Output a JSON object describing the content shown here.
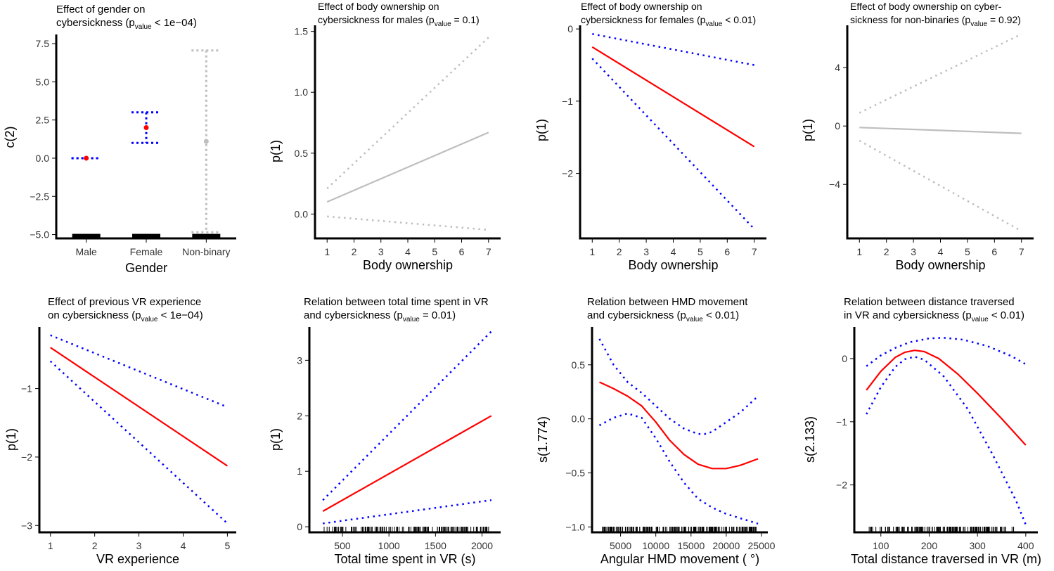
{
  "colors": {
    "significant_fit": "#ff0000",
    "significant_ci": "#0000ff",
    "nonsignificant": "#bebebe",
    "axis": "#000000",
    "point": "#ff0000"
  },
  "chart_data": [
    {
      "id": "p1",
      "type": "scatter",
      "title_lines": [
        [
          {
            "t": "Effect of gender on"
          }
        ],
        [
          {
            "t": "cybersickness (p"
          },
          {
            "t": "value",
            "sub": true
          },
          {
            "t": " < 1e−04)"
          }
        ]
      ],
      "xlabel": "Gender",
      "ylabel": "c(2)",
      "categories": [
        "Male",
        "Female",
        "Non-binary"
      ],
      "ylim": [
        -5.25,
        8.1
      ],
      "yticks": [
        -5.0,
        -2.5,
        0.0,
        2.5,
        5.0,
        7.5
      ],
      "ytick_labels": [
        "−5.0",
        "−2.5",
        "0.0",
        "2.5",
        "5.0",
        "7.5"
      ],
      "estimates": [
        {
          "category": "Male",
          "value": 0.0,
          "lower": 0.0,
          "upper": 0.0,
          "significant": true
        },
        {
          "category": "Female",
          "value": 2.0,
          "lower": 1.0,
          "upper": 3.0,
          "significant": true
        },
        {
          "category": "Non-binary",
          "value": 1.1,
          "lower": -4.85,
          "upper": 7.05,
          "significant": false
        }
      ],
      "rug": "category-bars"
    },
    {
      "id": "p2",
      "type": "line",
      "title_lines": [
        [
          {
            "t": "Effect of body ownership on"
          }
        ],
        [
          {
            "t": "cybersickness for males (p"
          },
          {
            "t": "value",
            "sub": true
          },
          {
            "t": " = 0.1)"
          }
        ]
      ],
      "xlabel": "Body ownership",
      "ylabel": "p(1)",
      "xlim": [
        0.55,
        7.45
      ],
      "ylim": [
        -0.2,
        1.55
      ],
      "xticks": [
        1,
        2,
        3,
        4,
        5,
        6,
        7
      ],
      "xtick_labels": [
        "1",
        "2",
        "3",
        "4",
        "5",
        "6",
        "7"
      ],
      "yticks": [
        0.0,
        0.5,
        1.0,
        1.5
      ],
      "ytick_labels": [
        "0.0",
        "0.5",
        "1.0",
        "1.5"
      ],
      "significant": false,
      "fit": {
        "x": [
          1,
          7
        ],
        "y": [
          0.1,
          0.67
        ]
      },
      "ci_upper": {
        "x": [
          1,
          7
        ],
        "y": [
          0.21,
          1.45
        ]
      },
      "ci_lower": {
        "x": [
          1,
          7
        ],
        "y": [
          -0.02,
          -0.13
        ]
      }
    },
    {
      "id": "p3",
      "type": "line",
      "title_lines": [
        [
          {
            "t": "Effect of body ownership on"
          }
        ],
        [
          {
            "t": "cybersickness for females (p"
          },
          {
            "t": "value",
            "sub": true
          },
          {
            "t": " < 0.01)"
          }
        ]
      ],
      "xlabel": "Body ownership",
      "ylabel": "p(1)",
      "xlim": [
        0.55,
        7.45
      ],
      "ylim": [
        -2.9,
        0.05
      ],
      "xticks": [
        1,
        2,
        3,
        4,
        5,
        6,
        7
      ],
      "xtick_labels": [
        "1",
        "2",
        "3",
        "4",
        "5",
        "6",
        "7"
      ],
      "yticks": [
        -2,
        -1,
        0
      ],
      "ytick_labels": [
        "−2",
        "−1",
        "0"
      ],
      "significant": true,
      "fit": {
        "x": [
          1,
          7
        ],
        "y": [
          -0.25,
          -1.63
        ]
      },
      "ci_upper": {
        "x": [
          1,
          7
        ],
        "y": [
          -0.07,
          -0.5
        ]
      },
      "ci_lower": {
        "x": [
          1,
          7
        ],
        "y": [
          -0.41,
          -2.77
        ]
      }
    },
    {
      "id": "p4",
      "type": "line",
      "title_lines": [
        [
          {
            "t": "Effect of body ownership on cyber-"
          }
        ],
        [
          {
            "t": "sickness for non-binaries (p"
          },
          {
            "t": "value",
            "sub": true
          },
          {
            "t": " = 0.92)"
          }
        ]
      ],
      "xlabel": "Body ownership",
      "ylabel": "p(1)",
      "xlim": [
        0.55,
        7.45
      ],
      "ylim": [
        -7.7,
        6.9
      ],
      "xticks": [
        1,
        2,
        3,
        4,
        5,
        6,
        7
      ],
      "xtick_labels": [
        "1",
        "2",
        "3",
        "4",
        "5",
        "6",
        "7"
      ],
      "yticks": [
        -4,
        0,
        4
      ],
      "ytick_labels": [
        "−4",
        "0",
        "4"
      ],
      "significant": false,
      "fit": {
        "x": [
          1,
          7
        ],
        "y": [
          -0.1,
          -0.5
        ]
      },
      "ci_upper": {
        "x": [
          1,
          7
        ],
        "y": [
          0.9,
          6.3
        ]
      },
      "ci_lower": {
        "x": [
          1,
          7
        ],
        "y": [
          -1.0,
          -7.2
        ]
      }
    },
    {
      "id": "p5",
      "type": "line",
      "title_lines": [
        [
          {
            "t": "Effect of previous VR experience"
          }
        ],
        [
          {
            "t": "on cybersickness (p"
          },
          {
            "t": "value",
            "sub": true
          },
          {
            "t": " < 1e−04)"
          }
        ]
      ],
      "xlabel": "VR experience",
      "ylabel": "p(1)",
      "xlim": [
        0.75,
        5.2
      ],
      "ylim": [
        -3.1,
        -0.1
      ],
      "xticks": [
        1,
        2,
        3,
        4,
        5
      ],
      "xtick_labels": [
        "1",
        "2",
        "3",
        "4",
        "5"
      ],
      "yticks": [
        -3,
        -2,
        -1
      ],
      "ytick_labels": [
        "−3",
        "−2",
        "−1"
      ],
      "significant": true,
      "fit": {
        "x": [
          1,
          5
        ],
        "y": [
          -0.4,
          -2.13
        ]
      },
      "ci_upper": {
        "x": [
          1,
          5
        ],
        "y": [
          -0.22,
          -1.27
        ]
      },
      "ci_lower": {
        "x": [
          1,
          5
        ],
        "y": [
          -0.6,
          -2.97
        ]
      }
    },
    {
      "id": "p6",
      "type": "line",
      "title_lines": [
        [
          {
            "t": "Relation between total time spent in VR"
          }
        ],
        [
          {
            "t": "and cybersickness (p"
          },
          {
            "t": "value",
            "sub": true
          },
          {
            "t": " = 0.01)"
          }
        ]
      ],
      "xlabel": "Total time spent in VR (s)",
      "ylabel": "p(1)",
      "xlim": [
        145,
        2200
      ],
      "ylim": [
        -0.1,
        3.6
      ],
      "xticks": [
        500,
        1000,
        1500,
        2000
      ],
      "xtick_labels": [
        "500",
        "1000",
        "1500",
        "2000"
      ],
      "yticks": [
        0,
        1,
        2,
        3
      ],
      "ytick_labels": [
        "0",
        "1",
        "2",
        "3"
      ],
      "significant": true,
      "fit": {
        "x": [
          290,
          2100
        ],
        "y": [
          0.28,
          2.0
        ]
      },
      "ci_upper": {
        "x": [
          290,
          2100
        ],
        "y": [
          0.48,
          3.52
        ]
      },
      "ci_lower": {
        "x": [
          290,
          2100
        ],
        "y": [
          0.06,
          0.48
        ]
      },
      "rug": {
        "start": 300,
        "end": 2080,
        "count": 150
      }
    },
    {
      "id": "p7",
      "type": "line",
      "title_lines": [
        [
          {
            "t": "Relation between HMD movement"
          }
        ],
        [
          {
            "t": "and cybersickness (p"
          },
          {
            "t": "value",
            "sub": true
          },
          {
            "t": " < 0.01)"
          }
        ]
      ],
      "xlabel": "Angular HMD movement ( °)",
      "ylabel": "s(1.774)",
      "xlim": [
        950,
        25900
      ],
      "ylim": [
        -1.05,
        0.85
      ],
      "xticks": [
        5000,
        10000,
        15000,
        20000,
        25000
      ],
      "xtick_labels": [
        "5000",
        "10000",
        "15000",
        "20000",
        "25000"
      ],
      "yticks": [
        -1.0,
        -0.5,
        0.0,
        0.5
      ],
      "ytick_labels": [
        "−1.0",
        "−0.5",
        "0.0",
        "0.5"
      ],
      "significant": true,
      "fit": {
        "x": [
          2000,
          4000,
          6000,
          8000,
          10000,
          12000,
          14000,
          16000,
          18000,
          20000,
          22000,
          24500
        ],
        "y": [
          0.34,
          0.28,
          0.21,
          0.12,
          -0.03,
          -0.2,
          -0.33,
          -0.42,
          -0.46,
          -0.46,
          -0.43,
          -0.37
        ]
      },
      "ci_upper": {
        "x": [
          2000,
          4000,
          6000,
          8000,
          10000,
          12000,
          14000,
          16000,
          17000,
          18000,
          20000,
          22000,
          24500
        ],
        "y": [
          0.74,
          0.5,
          0.34,
          0.24,
          0.12,
          0.0,
          -0.09,
          -0.14,
          -0.14,
          -0.12,
          -0.03,
          0.06,
          0.21
        ]
      },
      "ci_lower": {
        "x": [
          2000,
          4000,
          6000,
          8000,
          10000,
          12000,
          14000,
          16000,
          18000,
          20000,
          22000,
          24500
        ],
        "y": [
          -0.06,
          0.01,
          0.05,
          0.01,
          -0.18,
          -0.4,
          -0.59,
          -0.74,
          -0.82,
          -0.88,
          -0.92,
          -0.97
        ]
      },
      "rug": {
        "start": 2300,
        "end": 24500,
        "count": 200
      }
    },
    {
      "id": "p8",
      "type": "line",
      "title_lines": [
        [
          {
            "t": "Relation between distance traversed"
          }
        ],
        [
          {
            "t": "in VR and cybersickness (p"
          },
          {
            "t": "value",
            "sub": true
          },
          {
            "t": " < 0.01)"
          }
        ]
      ],
      "xlabel": "Total distance traversed in VR (m)",
      "ylabel": "s(2.133)",
      "xlim": [
        45,
        425
      ],
      "ylim": [
        -2.75,
        0.5
      ],
      "xticks": [
        100,
        200,
        300,
        400
      ],
      "xtick_labels": [
        "100",
        "200",
        "300",
        "400"
      ],
      "yticks": [
        -2,
        -1,
        0
      ],
      "ytick_labels": [
        "−2",
        "−1",
        "0"
      ],
      "significant": true,
      "fit": {
        "x": [
          70,
          100,
          130,
          150,
          170,
          190,
          220,
          260,
          300,
          350,
          400
        ],
        "y": [
          -0.5,
          -0.2,
          0.02,
          0.1,
          0.13,
          0.11,
          0.0,
          -0.25,
          -0.55,
          -0.95,
          -1.37
        ]
      },
      "ci_upper": {
        "x": [
          70,
          100,
          130,
          160,
          200,
          230,
          270,
          320,
          370,
          400
        ],
        "y": [
          -0.12,
          0.05,
          0.17,
          0.26,
          0.32,
          0.33,
          0.3,
          0.2,
          0.04,
          -0.09
        ]
      },
      "ci_lower": {
        "x": [
          70,
          100,
          130,
          150,
          170,
          190,
          230,
          280,
          330,
          380,
          400
        ],
        "y": [
          -0.88,
          -0.45,
          -0.13,
          -0.01,
          0.03,
          -0.02,
          -0.28,
          -0.8,
          -1.5,
          -2.25,
          -2.63
        ]
      },
      "rug": {
        "start": 72,
        "end": 375,
        "count": 160
      }
    }
  ]
}
